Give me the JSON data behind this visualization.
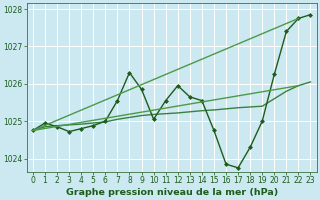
{
  "xlabel": "Graphe pression niveau de la mer (hPa)",
  "background_color": "#cce8f0",
  "grid_color": "#ffffff",
  "ylim": [
    1023.65,
    1028.15
  ],
  "xlim": [
    -0.5,
    23.5
  ],
  "yticks": [
    1024,
    1025,
    1026,
    1027,
    1028
  ],
  "xticks": [
    0,
    1,
    2,
    3,
    4,
    5,
    6,
    7,
    8,
    9,
    10,
    11,
    12,
    13,
    14,
    15,
    16,
    17,
    18,
    19,
    20,
    21,
    22,
    23
  ],
  "series": [
    {
      "x": [
        0,
        1,
        2,
        3,
        4,
        5,
        6,
        7,
        8,
        9,
        10,
        11,
        12,
        13,
        14,
        15,
        16,
        17,
        18,
        19,
        20,
        21,
        22,
        23
      ],
      "y": [
        1024.75,
        1024.85,
        1024.88,
        1024.9,
        1024.92,
        1024.95,
        1024.98,
        1025.05,
        1025.1,
        1025.15,
        1025.18,
        1025.2,
        1025.22,
        1025.25,
        1025.28,
        1025.3,
        1025.33,
        1025.36,
        1025.38,
        1025.4,
        1025.6,
        1025.8,
        1025.95,
        1026.05
      ],
      "color": "#3a8040",
      "linewidth": 1.0,
      "marker": null,
      "linestyle": "-"
    },
    {
      "x": [
        0,
        1,
        2,
        3,
        4,
        5,
        6,
        7,
        8,
        9,
        10,
        11,
        12,
        13,
        14,
        15,
        16,
        17,
        18,
        19,
        20,
        21,
        22,
        23
      ],
      "y": [
        1024.75,
        1024.95,
        1024.85,
        1024.72,
        1024.8,
        1024.88,
        1025.0,
        1025.55,
        1026.3,
        1025.85,
        1025.05,
        1025.55,
        1025.95,
        1025.65,
        1025.55,
        1024.75,
        1023.85,
        1023.75,
        1024.3,
        1025.0,
        1026.25,
        1027.4,
        1027.75,
        1027.85
      ],
      "color": "#1e5c1e",
      "linewidth": 1.0,
      "marker": "D",
      "markersize": 2.0,
      "linestyle": "-"
    },
    {
      "x": [
        0,
        22
      ],
      "y": [
        1024.75,
        1027.75
      ],
      "color": "#4a9a4a",
      "linewidth": 1.0,
      "marker": null,
      "linestyle": "-"
    },
    {
      "x": [
        0,
        22
      ],
      "y": [
        1024.75,
        1025.95
      ],
      "color": "#4a9a4a",
      "linewidth": 1.0,
      "marker": null,
      "linestyle": "-"
    }
  ],
  "tick_fontsize": 5.5,
  "label_fontsize": 6.8,
  "label_fontweight": "bold",
  "label_color": "#1e5c1e",
  "tick_color": "#1e5c1e",
  "spine_color": "#1e5c1e"
}
